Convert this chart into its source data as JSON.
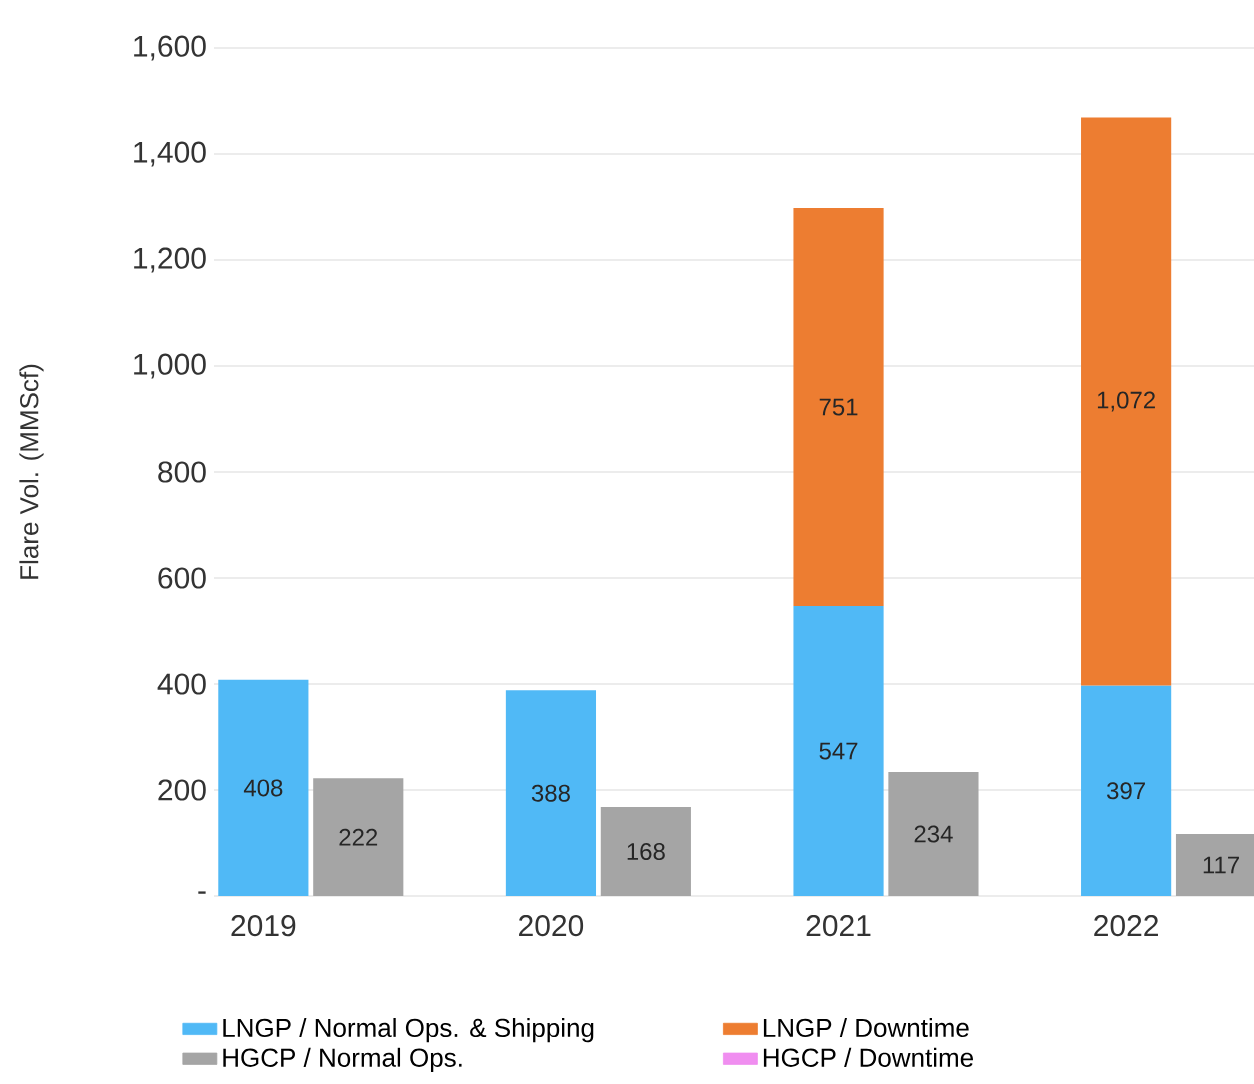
{
  "chart_data": {
    "type": "bar",
    "stacked": true,
    "ylabel": "Flare Vol. (MMScf)",
    "categories": [
      "2019",
      null,
      "2020",
      null,
      "2021",
      null,
      "2022",
      null
    ],
    "ylim": [
      0,
      1600
    ],
    "yticks": [
      {
        "value": 0,
        "label": "-"
      },
      200,
      400,
      600,
      800,
      {
        "value": 1000,
        "label": "1,000"
      },
      {
        "value": 1200,
        "label": "1,200"
      },
      {
        "value": 1400,
        "label": "1,400"
      },
      {
        "value": 1600,
        "label": "1,600"
      }
    ],
    "grid": "y",
    "legend": "bottom",
    "series": [
      {
        "name": "LNGP / Normal Ops. & Shipping",
        "color": "#50b9f6",
        "values": [
          408,
          null,
          388,
          null,
          547,
          null,
          397,
          null
        ],
        "value_labels": [
          "408",
          null,
          "388",
          null,
          "547",
          null,
          "397",
          null
        ]
      },
      {
        "name": "LNGP / Downtime",
        "color": "#ed7d31",
        "values": [
          null,
          null,
          null,
          null,
          751,
          null,
          1072,
          null
        ],
        "value_labels": [
          null,
          null,
          null,
          null,
          "751",
          null,
          "1,072",
          null
        ]
      },
      {
        "name": "HGCP / Normal Ops.",
        "color": "#a5a5a5",
        "values": [
          null,
          222,
          null,
          168,
          null,
          234,
          null,
          117
        ],
        "value_labels": [
          null,
          "222",
          null,
          "168",
          null,
          "234",
          null,
          "117"
        ]
      },
      {
        "name": "HGCP / Downtime",
        "color": "#f08ef0",
        "values": [
          null,
          null,
          null,
          null,
          null,
          null,
          null,
          null
        ]
      }
    ]
  }
}
